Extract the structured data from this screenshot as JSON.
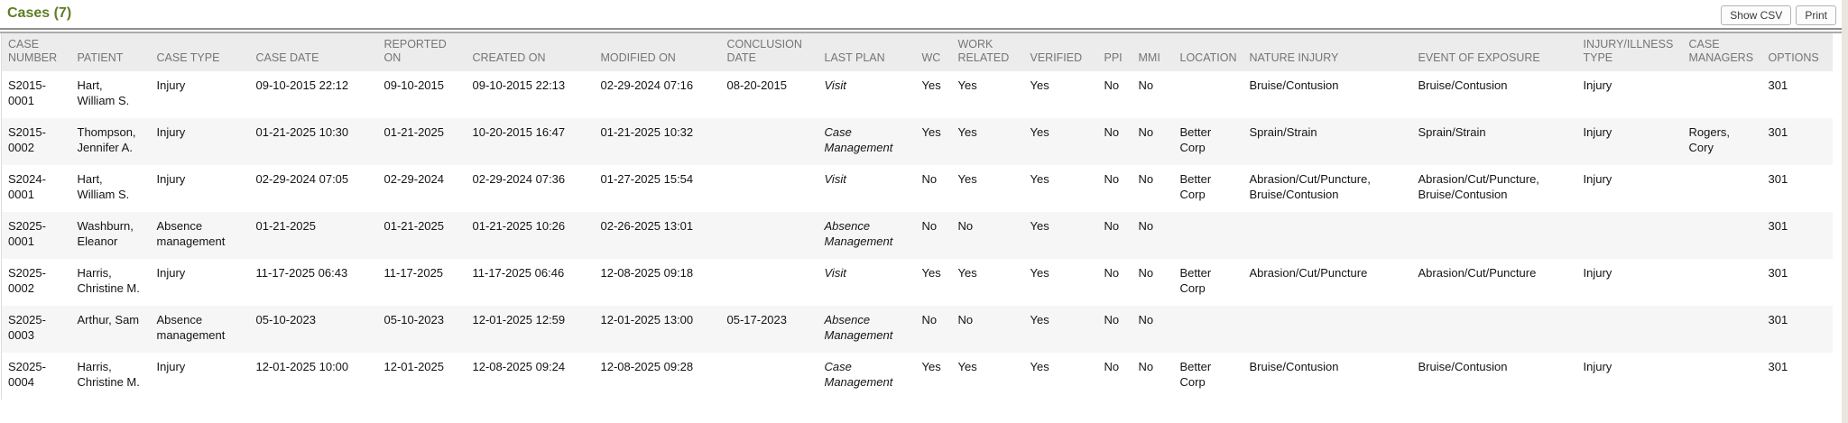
{
  "page": {
    "title": "Cases (7)",
    "buttons": {
      "show_csv": "Show CSV",
      "print": "Print"
    }
  },
  "colors": {
    "title_green": "#5f7d24",
    "header_bg": "#ececec",
    "header_text": "#757575",
    "row_stripe": "#f6f6f6",
    "body_text": "#141414",
    "rule_dark": "#8f8f8f",
    "button_border": "#b3b3b3"
  },
  "table": {
    "columns": [
      {
        "key": "case_number",
        "label": "CASE NUMBER"
      },
      {
        "key": "patient",
        "label": "PATIENT"
      },
      {
        "key": "case_type",
        "label": "CASE TYPE"
      },
      {
        "key": "case_date",
        "label": "CASE DATE"
      },
      {
        "key": "reported_on",
        "label": "REPORTED ON"
      },
      {
        "key": "created_on",
        "label": "CREATED ON"
      },
      {
        "key": "modified_on",
        "label": "MODIFIED ON"
      },
      {
        "key": "conclusion_date",
        "label": "CONCLUSION DATE"
      },
      {
        "key": "last_plan",
        "label": "LAST PLAN"
      },
      {
        "key": "wc",
        "label": "WC"
      },
      {
        "key": "work_related",
        "label": "WORK RELATED"
      },
      {
        "key": "verified",
        "label": "VERIFIED"
      },
      {
        "key": "ppi",
        "label": "PPI"
      },
      {
        "key": "mmi",
        "label": "MMI"
      },
      {
        "key": "location",
        "label": "LOCATION"
      },
      {
        "key": "nature_injury",
        "label": "NATURE INJURY"
      },
      {
        "key": "event_of_exposure",
        "label": "EVENT OF EXPOSURE"
      },
      {
        "key": "injury_illness_type",
        "label": "INJURY/ILLNESS TYPE"
      },
      {
        "key": "case_managers",
        "label": "CASE MANAGERS"
      },
      {
        "key": "options",
        "label": "OPTIONS"
      }
    ],
    "rows": [
      {
        "case_number": "S2015-0001",
        "patient": "Hart, William S.",
        "case_type": "Injury",
        "case_date": "09-10-2015 22:12",
        "reported_on": "09-10-2015",
        "created_on": "09-10-2015 22:13",
        "modified_on": "02-29-2024 07:16",
        "conclusion_date": "08-20-2015",
        "last_plan": "Visit",
        "wc": "Yes",
        "work_related": "Yes",
        "verified": "Yes",
        "ppi": "No",
        "mmi": "No",
        "location": "",
        "nature_injury": "Bruise/Contusion",
        "event_of_exposure": "Bruise/Contusion",
        "injury_illness_type": "Injury",
        "case_managers": "",
        "options": "301"
      },
      {
        "case_number": "S2015-0002",
        "patient": "Thompson, Jennifer A.",
        "case_type": "Injury",
        "case_date": "01-21-2025 10:30",
        "reported_on": "01-21-2025",
        "created_on": "10-20-2015 16:47",
        "modified_on": "01-21-2025 10:32",
        "conclusion_date": "",
        "last_plan": "Case Management",
        "wc": "Yes",
        "work_related": "Yes",
        "verified": "Yes",
        "ppi": "No",
        "mmi": "No",
        "location": "Better Corp",
        "nature_injury": "Sprain/Strain",
        "event_of_exposure": "Sprain/Strain",
        "injury_illness_type": "Injury",
        "case_managers": "Rogers, Cory",
        "options": "301"
      },
      {
        "case_number": "S2024-0001",
        "patient": "Hart, William S.",
        "case_type": "Injury",
        "case_date": "02-29-2024 07:05",
        "reported_on": "02-29-2024",
        "created_on": "02-29-2024 07:36",
        "modified_on": "01-27-2025 15:54",
        "conclusion_date": "",
        "last_plan": "Visit",
        "wc": "No",
        "work_related": "Yes",
        "verified": "Yes",
        "ppi": "No",
        "mmi": "No",
        "location": "Better Corp",
        "nature_injury": "Abrasion/Cut/Puncture, Bruise/Contusion",
        "event_of_exposure": "Abrasion/Cut/Puncture, Bruise/Contusion",
        "injury_illness_type": "Injury",
        "case_managers": "",
        "options": "301"
      },
      {
        "case_number": "S2025-0001",
        "patient": "Washburn, Eleanor",
        "case_type": "Absence management",
        "case_date": "01-21-2025",
        "reported_on": "01-21-2025",
        "created_on": "01-21-2025 10:26",
        "modified_on": "02-26-2025 13:01",
        "conclusion_date": "",
        "last_plan": "Absence Management",
        "wc": "No",
        "work_related": "No",
        "verified": "Yes",
        "ppi": "No",
        "mmi": "No",
        "location": "",
        "nature_injury": "",
        "event_of_exposure": "",
        "injury_illness_type": "",
        "case_managers": "",
        "options": "301"
      },
      {
        "case_number": "S2025-0002",
        "patient": "Harris, Christine M.",
        "case_type": "Injury",
        "case_date": "11-17-2025 06:43",
        "reported_on": "11-17-2025",
        "created_on": "11-17-2025 06:46",
        "modified_on": "12-08-2025 09:18",
        "conclusion_date": "",
        "last_plan": "Visit",
        "wc": "Yes",
        "work_related": "Yes",
        "verified": "Yes",
        "ppi": "No",
        "mmi": "No",
        "location": "Better Corp",
        "nature_injury": "Abrasion/Cut/Puncture",
        "event_of_exposure": "Abrasion/Cut/Puncture",
        "injury_illness_type": "Injury",
        "case_managers": "",
        "options": "301"
      },
      {
        "case_number": "S2025-0003",
        "patient": "Arthur, Sam",
        "case_type": "Absence management",
        "case_date": "05-10-2023",
        "reported_on": "05-10-2023",
        "created_on": "12-01-2025 12:59",
        "modified_on": "12-01-2025 13:00",
        "conclusion_date": "05-17-2023",
        "last_plan": "Absence Management",
        "wc": "No",
        "work_related": "No",
        "verified": "Yes",
        "ppi": "No",
        "mmi": "No",
        "location": "",
        "nature_injury": "",
        "event_of_exposure": "",
        "injury_illness_type": "",
        "case_managers": "",
        "options": "301"
      },
      {
        "case_number": "S2025-0004",
        "patient": "Harris, Christine M.",
        "case_type": "Injury",
        "case_date": "12-01-2025 10:00",
        "reported_on": "12-01-2025",
        "created_on": "12-08-2025 09:24",
        "modified_on": "12-08-2025 09:28",
        "conclusion_date": "",
        "last_plan": "Case Management",
        "wc": "Yes",
        "work_related": "Yes",
        "verified": "Yes",
        "ppi": "No",
        "mmi": "No",
        "location": "Better Corp",
        "nature_injury": "Bruise/Contusion",
        "event_of_exposure": "Bruise/Contusion",
        "injury_illness_type": "Injury",
        "case_managers": "",
        "options": "301"
      }
    ]
  }
}
